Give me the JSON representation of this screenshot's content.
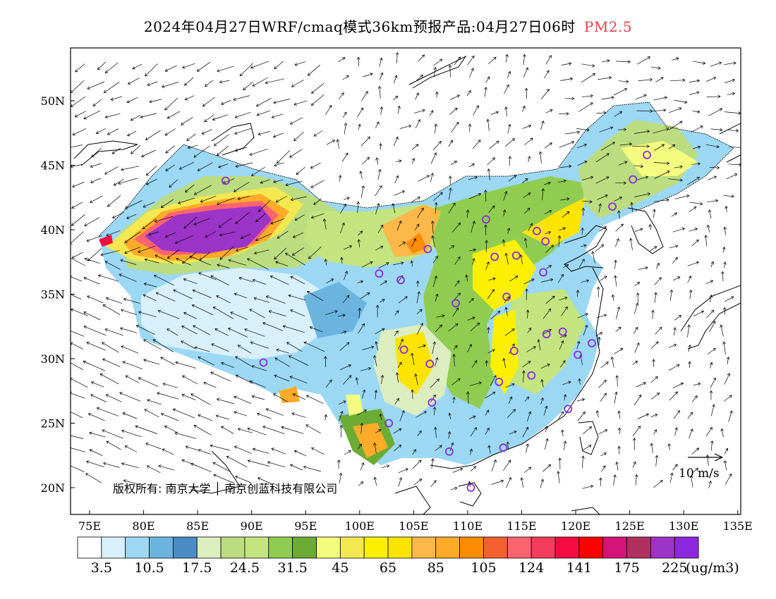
{
  "title": {
    "main": "2024年04月27日WRF/cmaq模式36km预报产品:04月27日06时",
    "variable": "PM2.5"
  },
  "axes": {
    "lat_ticks": [
      "50N",
      "45N",
      "40N",
      "35N",
      "30N",
      "25N",
      "20N"
    ],
    "lon_ticks": [
      "75E",
      "80E",
      "85E",
      "90E",
      "95E",
      "100E",
      "105E",
      "110E",
      "115E",
      "120E",
      "125E",
      "130E",
      "135E"
    ]
  },
  "copyright": "版权所有: 南京大学 │ 南京创蓝科技有限公司",
  "wind_scale": {
    "label": "10 m/s"
  },
  "colorbar": {
    "colors": [
      "#ffffff",
      "#d8f0fc",
      "#9cd8f4",
      "#6cb4e0",
      "#4a8cc4",
      "#dceec0",
      "#bcdc80",
      "#c4e480",
      "#90cc50",
      "#6cac34",
      "#f4fc80",
      "#f4e850",
      "#fcf000",
      "#fce400",
      "#fcb848",
      "#fcac28",
      "#fc8c00",
      "#f46030",
      "#fc6470",
      "#f43c5c",
      "#f40c40",
      "#fc0000",
      "#d41478",
      "#b03060",
      "#9c34c8",
      "#8c28e0"
    ],
    "labels": [
      "3.5",
      "10.5",
      "17.5",
      "24.5",
      "31.5",
      "45",
      "65",
      "85",
      "105",
      "124",
      "141",
      "175",
      "225"
    ],
    "unit": "(ug/m3)"
  },
  "stations": [
    {
      "lon": 87.6,
      "lat": 43.8
    },
    {
      "lon": 91.1,
      "lat": 29.7
    },
    {
      "lon": 101.8,
      "lat": 36.6
    },
    {
      "lon": 103.8,
      "lat": 36.1
    },
    {
      "lon": 106.3,
      "lat": 38.5
    },
    {
      "lon": 111.7,
      "lat": 40.8
    },
    {
      "lon": 116.4,
      "lat": 39.9
    },
    {
      "lon": 117.2,
      "lat": 39.1
    },
    {
      "lon": 114.5,
      "lat": 38.0
    },
    {
      "lon": 112.5,
      "lat": 37.9
    },
    {
      "lon": 117.0,
      "lat": 36.7
    },
    {
      "lon": 113.6,
      "lat": 34.8
    },
    {
      "lon": 108.9,
      "lat": 34.3
    },
    {
      "lon": 104.1,
      "lat": 30.7
    },
    {
      "lon": 106.5,
      "lat": 29.6
    },
    {
      "lon": 114.3,
      "lat": 30.6
    },
    {
      "lon": 117.3,
      "lat": 31.9
    },
    {
      "lon": 118.8,
      "lat": 32.1
    },
    {
      "lon": 120.2,
      "lat": 30.3
    },
    {
      "lon": 121.5,
      "lat": 31.2
    },
    {
      "lon": 112.9,
      "lat": 28.2
    },
    {
      "lon": 115.9,
      "lat": 28.7
    },
    {
      "lon": 119.3,
      "lat": 26.1
    },
    {
      "lon": 113.3,
      "lat": 23.1
    },
    {
      "lon": 108.3,
      "lat": 22.8
    },
    {
      "lon": 106.7,
      "lat": 26.6
    },
    {
      "lon": 102.7,
      "lat": 25.0
    },
    {
      "lon": 110.3,
      "lat": 20.0
    },
    {
      "lon": 123.4,
      "lat": 41.8
    },
    {
      "lon": 125.3,
      "lat": 43.9
    },
    {
      "lon": 126.6,
      "lat": 45.8
    }
  ]
}
